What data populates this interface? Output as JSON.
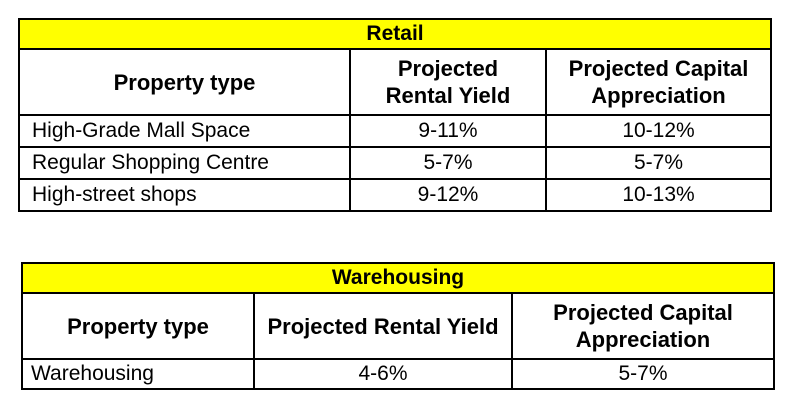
{
  "retail": {
    "title": "Retail",
    "headers": [
      "Property type",
      "Projected Rental Yield",
      "Projected Capital Appreciation"
    ],
    "rows": [
      {
        "property": "High-Grade Mall Space",
        "yield": "9-11%",
        "appreciation": "10-12%"
      },
      {
        "property": "Regular Shopping Centre",
        "yield": "5-7%",
        "appreciation": "5-7%"
      },
      {
        "property": "High-street shops",
        "yield": "9-12%",
        "appreciation": "10-13%"
      }
    ]
  },
  "warehousing": {
    "title": "Warehousing",
    "headers": [
      "Property type",
      "Projected Rental Yield",
      "Projected Capital Appreciation"
    ],
    "rows": [
      {
        "property": "Warehousing",
        "yield": "4-6%",
        "appreciation": "5-7%"
      }
    ]
  }
}
